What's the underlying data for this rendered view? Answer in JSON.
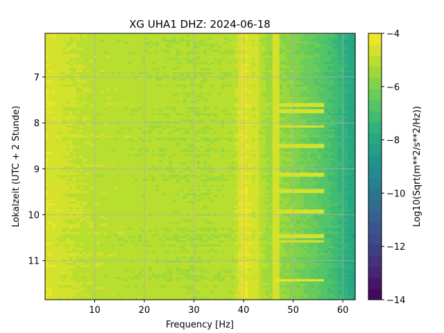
{
  "chart_data": {
    "type": "heatmap",
    "title": "XG UHA1  DHZ: 2024-06-18",
    "xlabel": "Frequency [Hz]",
    "ylabel": "Lokalzeit (UTC + 2 Stunde)",
    "xlim": [
      0,
      62.5
    ],
    "ylim": [
      11.85,
      6.05
    ],
    "x_ticks": [
      10,
      20,
      30,
      40,
      50,
      60
    ],
    "y_ticks": [
      7,
      8,
      9,
      10,
      11
    ],
    "grid": true,
    "colormap": "viridis",
    "colorbar": {
      "label": "Log10(Sqrt(m**2/s**2/Hz))",
      "range": [
        -14,
        -4
      ],
      "ticks": [
        -4,
        -6,
        -8,
        -10,
        -12,
        -14
      ],
      "levels": 24
    },
    "spectral_lines_hz": [
      40,
      42.5,
      46.5
    ],
    "horizontal_bands": [
      {
        "hour": 7.6,
        "level": -4.8
      },
      {
        "hour": 7.72,
        "level": -4.8
      },
      {
        "hour": 8.05,
        "level": -4.8
      },
      {
        "hour": 8.48,
        "level": -4.8
      },
      {
        "hour": 9.1,
        "level": -4.8
      },
      {
        "hour": 9.45,
        "level": -4.8
      },
      {
        "hour": 9.92,
        "level": -4.8
      },
      {
        "hour": 10.45,
        "level": -4.8
      },
      {
        "hour": 10.55,
        "level": -4.8
      },
      {
        "hour": 11.4,
        "level": -4.3
      }
    ],
    "profile": [
      {
        "freq_hz": 0.5,
        "level": -4.5
      },
      {
        "freq_hz": 5,
        "level": -4.8
      },
      {
        "freq_hz": 10,
        "level": -5.0
      },
      {
        "freq_hz": 20,
        "level": -5.1
      },
      {
        "freq_hz": 30,
        "level": -5.2
      },
      {
        "freq_hz": 38,
        "level": -5.1
      },
      {
        "freq_hz": 40,
        "level": -4.3
      },
      {
        "freq_hz": 45,
        "level": -5.4
      },
      {
        "freq_hz": 49,
        "level": -5.7
      },
      {
        "freq_hz": 52,
        "level": -6.1
      },
      {
        "freq_hz": 55,
        "level": -6.5
      },
      {
        "freq_hz": 58,
        "level": -7.0
      },
      {
        "freq_hz": 60,
        "level": -7.5
      },
      {
        "freq_hz": 62,
        "level": -8.0
      }
    ]
  }
}
